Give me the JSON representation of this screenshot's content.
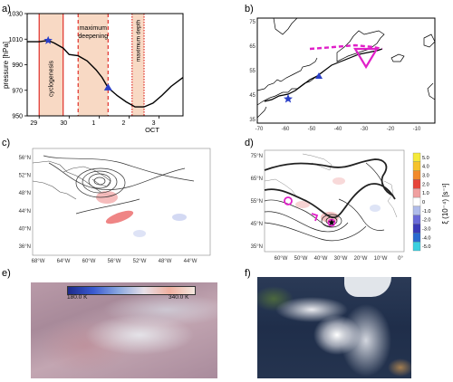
{
  "panels": {
    "a": "a)",
    "b": "b)",
    "c": "c)",
    "d": "d)",
    "e": "e)",
    "f": "f)"
  },
  "colors": {
    "shade": "#f8d9c4",
    "phase_line": "#e0302a",
    "star": "#2a3fc8",
    "triangle": "#2a3fc8",
    "magenta": "#e020c8",
    "vort_pos": "#f0a8a8",
    "vort_neg": "#b8c4ec"
  },
  "chart_data": [
    {
      "type": "line",
      "panel": "a",
      "ylabel": "pressure [hPa]",
      "ylim": [
        950,
        1030
      ],
      "yticks": [
        950,
        970,
        990,
        1010,
        1030
      ],
      "xlim": [
        28.6,
        3.8
      ],
      "xticks": [
        "29",
        "30",
        "1",
        "2",
        "3"
      ],
      "month_label": "OCT",
      "phases": [
        {
          "name": "cyclogenesis",
          "start": 29.0,
          "end": 29.8
        },
        {
          "name": "maximum deepening",
          "start": 30.3,
          "end": 1.3
        },
        {
          "name": "maximum depth",
          "start": 2.1,
          "end": 2.5
        }
      ],
      "series": [
        {
          "values": [
            {
              "t": 28.6,
              "p": 1008
            },
            {
              "t": 29.0,
              "p": 1008
            },
            {
              "t": 29.3,
              "p": 1009
            },
            {
              "t": 29.5,
              "p": 1007
            },
            {
              "t": 29.8,
              "p": 1003
            },
            {
              "t": 30.0,
              "p": 998
            },
            {
              "t": 30.3,
              "p": 997
            },
            {
              "t": 30.6,
              "p": 993
            },
            {
              "t": 30.9,
              "p": 986
            },
            {
              "t": 1.1,
              "p": 980
            },
            {
              "t": 1.3,
              "p": 972
            },
            {
              "t": 1.6,
              "p": 966
            },
            {
              "t": 1.9,
              "p": 961
            },
            {
              "t": 2.2,
              "p": 957
            },
            {
              "t": 2.5,
              "p": 957
            },
            {
              "t": 2.8,
              "p": 960
            },
            {
              "t": 3.1,
              "p": 966
            },
            {
              "t": 3.4,
              "p": 973
            },
            {
              "t": 3.8,
              "p": 980
            }
          ]
        }
      ],
      "markers": [
        {
          "shape": "star",
          "t": 29.3,
          "p": 1009
        },
        {
          "shape": "triangle",
          "t": 1.3,
          "p": 972
        }
      ]
    }
  ],
  "map_b": {
    "lon_ticks": [
      "-70",
      "-60",
      "-50",
      "-40",
      "-30",
      "-20",
      "-10"
    ],
    "lat_ticks": [
      "35",
      "45",
      "55",
      "65",
      "75"
    ]
  },
  "map_c": {
    "lon_ticks": [
      "68°W",
      "64°W",
      "60°W",
      "56°W",
      "52°W",
      "48°W",
      "44°W"
    ],
    "lat_ticks": [
      "56°N",
      "52°N",
      "48°N",
      "44°N",
      "40°N",
      "36°N"
    ]
  },
  "map_d": {
    "lon_ticks": [
      "60°W",
      "50°W",
      "40°W",
      "30°W",
      "20°W",
      "10°W",
      "0°"
    ],
    "lat_ticks": [
      "75°N",
      "65°N",
      "55°N",
      "45°N",
      "35°N"
    ]
  },
  "colorbar_d": {
    "label": "ξ (10⁻⁴) [s⁻¹]",
    "ticks": [
      "5.0",
      "4.0",
      "3.0",
      "2.0",
      "1.0",
      "0",
      "-1.0",
      "-2.0",
      "-3.0",
      "-4.0",
      "-5.0"
    ],
    "stops": [
      "#f5ea3a",
      "#f6c22a",
      "#f28a2a",
      "#e6443a",
      "#f0a0a0",
      "#ffffff",
      "#b0bcea",
      "#6a6ad8",
      "#3a3ab8",
      "#2a6ad0",
      "#3ad0e0"
    ]
  },
  "colorbar_e": {
    "min_label": "180.0 K",
    "max_label": "340.0 K"
  }
}
